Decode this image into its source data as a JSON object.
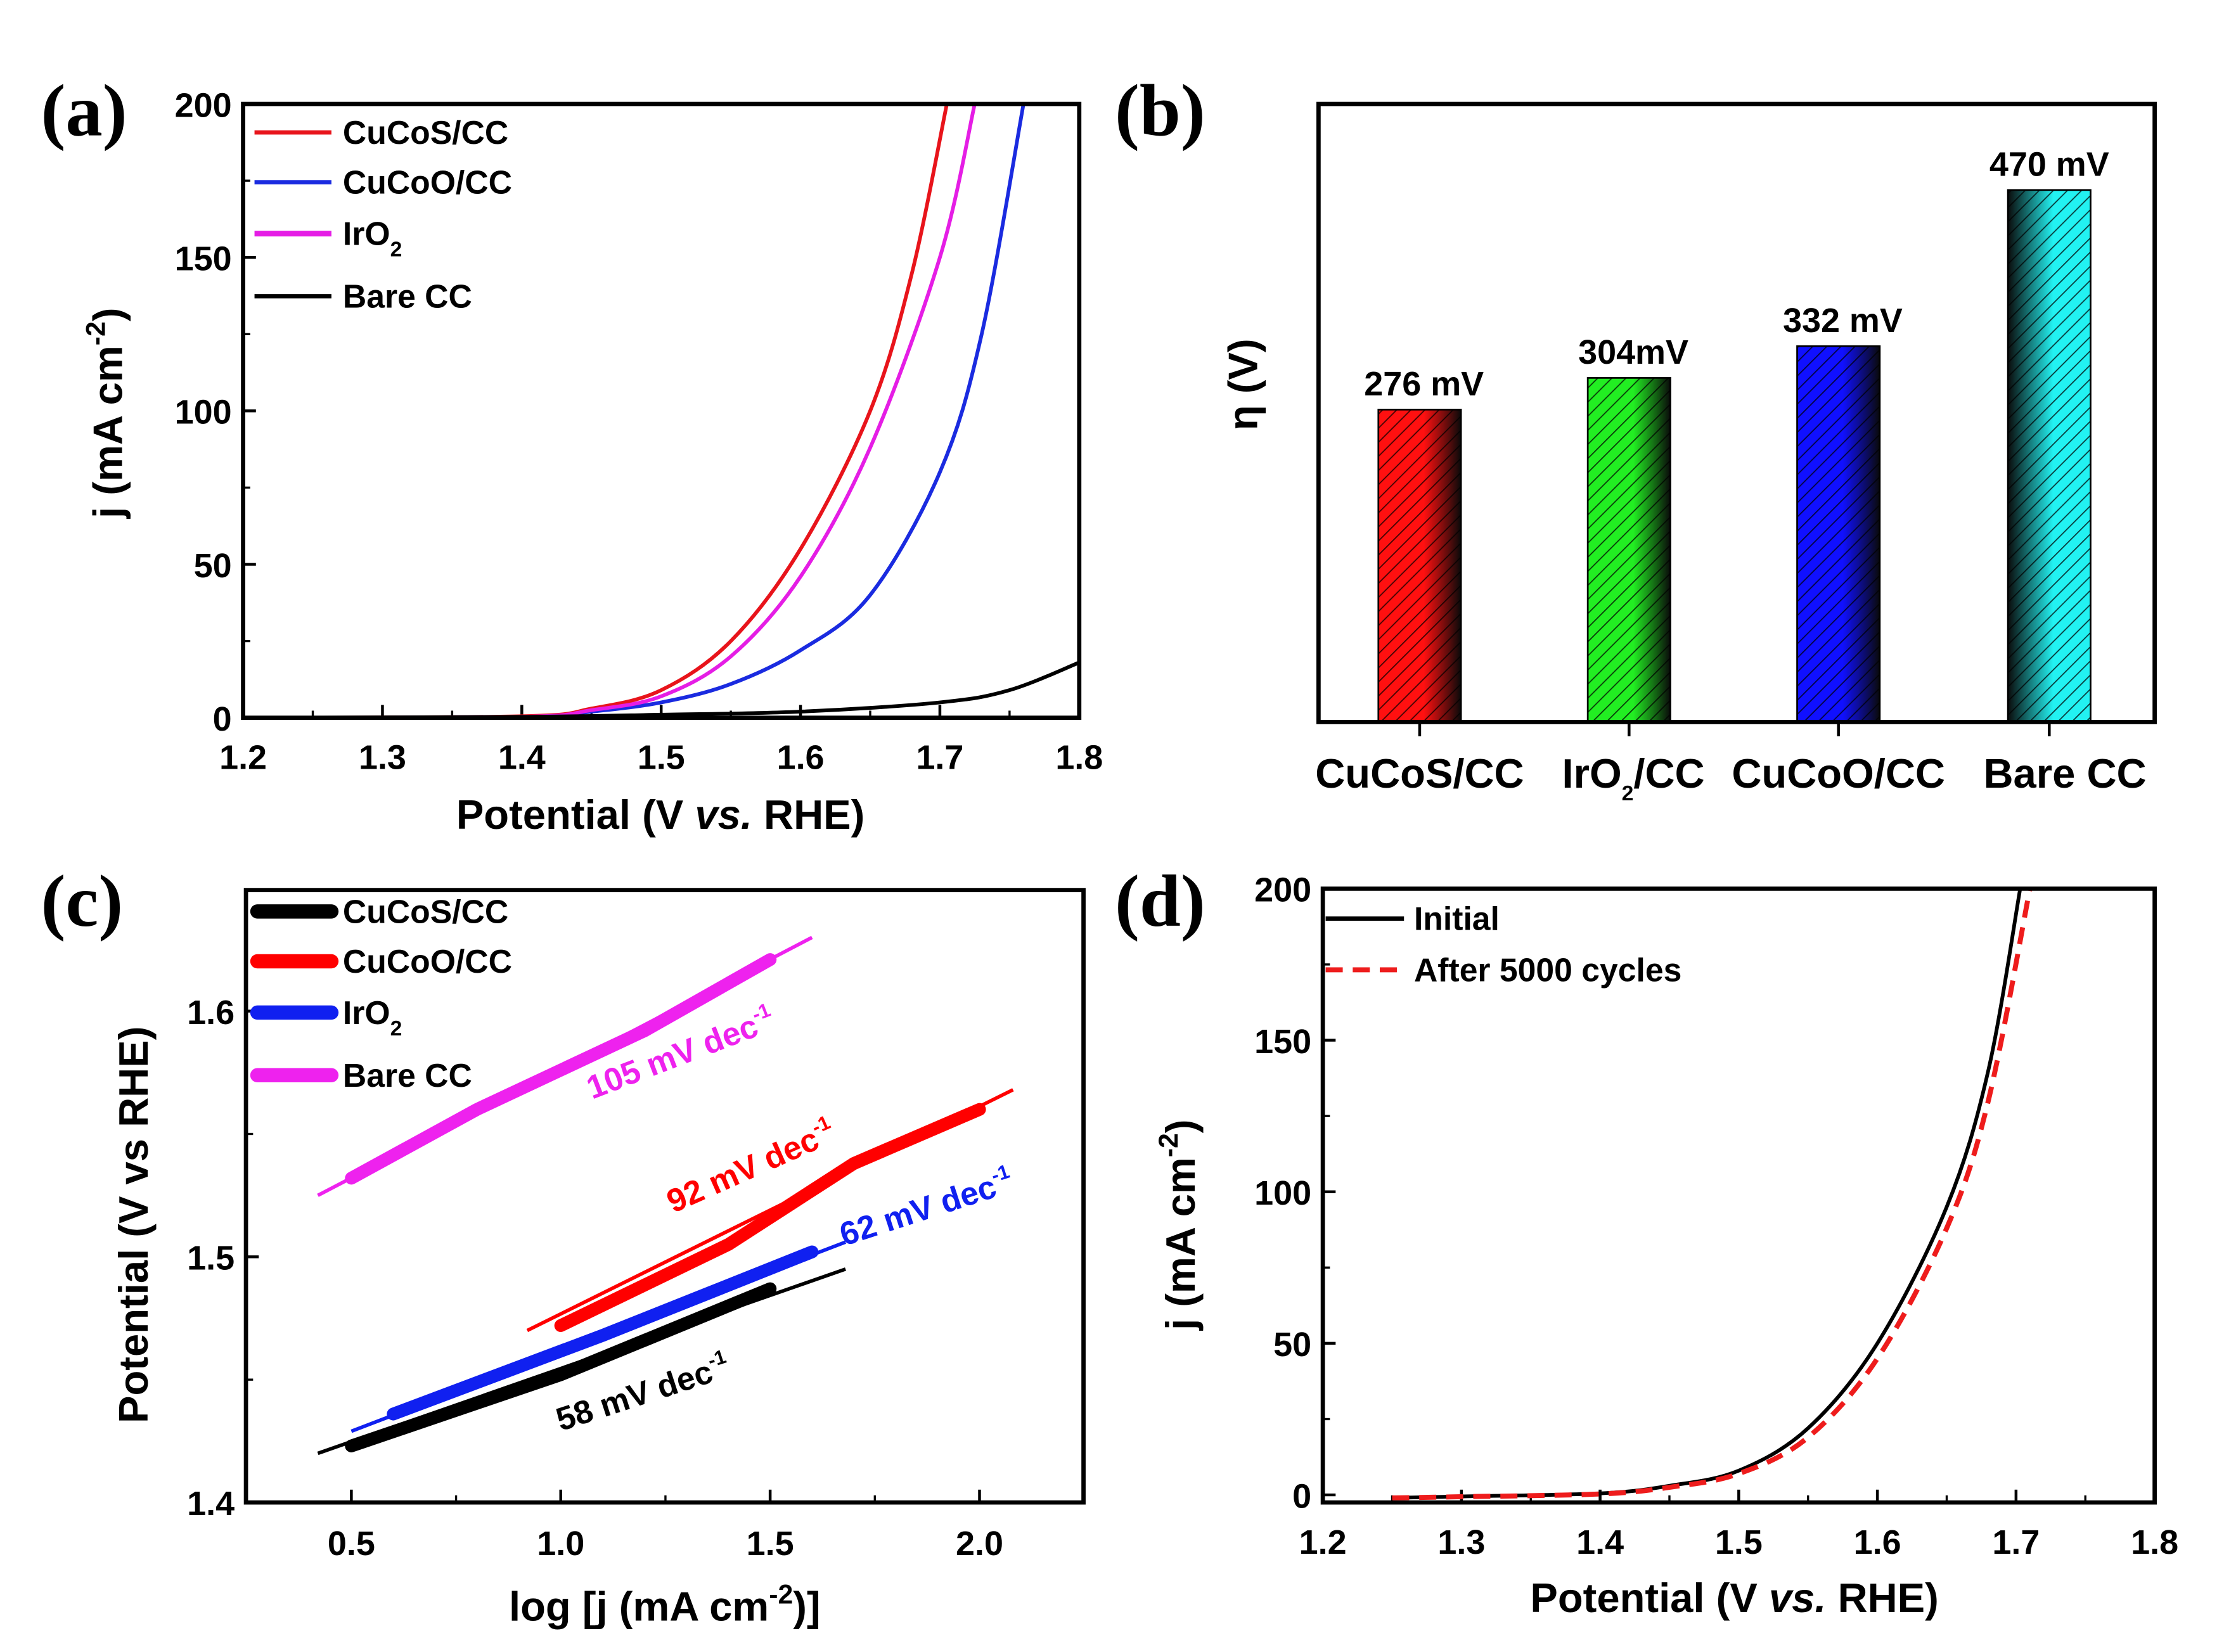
{
  "chart_data": [
    {
      "panel": "(a)",
      "type": "line",
      "xlabel": {
        "pre": "Potential (V ",
        "em": "vs.",
        "post": " RHE)"
      },
      "ylabel": {
        "pre": "j (mA cm",
        "sup": "-2",
        "post": ")"
      },
      "xlim": [
        1.2,
        1.8
      ],
      "ylim": [
        0,
        200
      ],
      "xticks": [
        1.2,
        1.3,
        1.4,
        1.5,
        1.6,
        1.7,
        1.8
      ],
      "yticks": [
        0,
        50,
        100,
        150,
        200
      ],
      "legend_position": "top-left",
      "series": [
        {
          "name": "CuCoS/CC",
          "color": "#e8141b",
          "points": [
            [
              1.2,
              0
            ],
            [
              1.4,
              0.5
            ],
            [
              1.45,
              3
            ],
            [
              1.5,
              9
            ],
            [
              1.55,
              25
            ],
            [
              1.6,
              55
            ],
            [
              1.65,
              100
            ],
            [
              1.68,
              145
            ],
            [
              1.705,
              200
            ]
          ]
        },
        {
          "name": "CuCoO/CC",
          "color": "#1a2be0",
          "points": [
            [
              1.2,
              0
            ],
            [
              1.4,
              0.3
            ],
            [
              1.45,
              2
            ],
            [
              1.5,
              5
            ],
            [
              1.55,
              11
            ],
            [
              1.6,
              22
            ],
            [
              1.65,
              40
            ],
            [
              1.7,
              80
            ],
            [
              1.73,
              125
            ],
            [
              1.76,
              200
            ]
          ]
        },
        {
          "name": "IrO",
          "sub": "2",
          "color": "#e51de5",
          "points": [
            [
              1.2,
              0
            ],
            [
              1.4,
              0.3
            ],
            [
              1.45,
              2.5
            ],
            [
              1.5,
              7
            ],
            [
              1.55,
              20
            ],
            [
              1.6,
              46
            ],
            [
              1.65,
              88
            ],
            [
              1.7,
              150
            ],
            [
              1.725,
              200
            ]
          ]
        },
        {
          "name": "Bare CC",
          "color": "#000000",
          "points": [
            [
              1.2,
              0
            ],
            [
              1.4,
              0.3
            ],
            [
              1.5,
              1
            ],
            [
              1.6,
              2
            ],
            [
              1.7,
              5
            ],
            [
              1.75,
              9
            ],
            [
              1.8,
              18
            ]
          ]
        }
      ]
    },
    {
      "panel": "(b)",
      "type": "bar",
      "ylabel": "η (V)",
      "ylim": [
        0,
        546
      ],
      "categories": [
        {
          "pre": "CuCoS/CC"
        },
        {
          "pre": "IrO",
          "sub": "2",
          "post": "/CC"
        },
        {
          "pre": "CuCoO/CC"
        },
        {
          "pre": "Bare CC"
        }
      ],
      "values": [
        276,
        304,
        332,
        470
      ],
      "value_unit": "mV",
      "data_labels": [
        "276 mV",
        "304mV",
        "332 mV",
        "470 mV"
      ],
      "colors": [
        "#ff1010",
        "#22ee22",
        "#1010ff",
        "#22f2f2"
      ]
    },
    {
      "panel": "(c)",
      "type": "line",
      "xlabel": {
        "pre": "log [j (mA cm",
        "sup": "-2",
        "post": ")]"
      },
      "ylabel": "Potential (V vs RHE)",
      "xlim": [
        0.25,
        2.26
      ],
      "ylim": [
        1.4,
        1.649
      ],
      "xticks": [
        "0.5",
        "1.0",
        "1.5",
        "2.0"
      ],
      "yticks": [
        "1.4",
        "1.5",
        "1.6"
      ],
      "legend_position": "top-left",
      "series": [
        {
          "name": "CuCoS/CC",
          "color": "#000000",
          "data": [
            [
              0.5,
              1.423
            ],
            [
              1.0,
              1.452
            ],
            [
              1.5,
              1.487
            ]
          ],
          "fit": [
            [
              0.42,
              1.42
            ],
            [
              1.68,
              1.495
            ]
          ],
          "slope_label": {
            "pre": "58 mV dec",
            "sup": "-1"
          }
        },
        {
          "name": "CuCoO/CC",
          "color": "#ff0000",
          "data": [
            [
              1.0,
              1.472
            ],
            [
              1.4,
              1.505
            ],
            [
              1.7,
              1.538
            ],
            [
              2.0,
              1.56
            ]
          ],
          "fit": [
            [
              0.92,
              1.47
            ],
            [
              2.08,
              1.568
            ]
          ],
          "slope_label": {
            "pre": "92 mV dec",
            "sup": "-1"
          }
        },
        {
          "name": "IrO",
          "sub": "2",
          "color": "#1020f0",
          "data": [
            [
              0.6,
              1.436
            ],
            [
              1.1,
              1.468
            ],
            [
              1.6,
              1.502
            ]
          ],
          "fit": [
            [
              0.5,
              1.429
            ],
            [
              1.68,
              1.506
            ]
          ],
          "slope_label": {
            "pre": "62 mV dec",
            "sup": "-1"
          }
        },
        {
          "name": "Bare CC",
          "color": "#ee22ee",
          "data": [
            [
              0.5,
              1.532
            ],
            [
              0.8,
              1.56
            ],
            [
              1.2,
              1.592
            ],
            [
              1.5,
              1.621
            ]
          ],
          "fit": [
            [
              0.42,
              1.525
            ],
            [
              1.6,
              1.63
            ]
          ],
          "slope_label": {
            "pre": "105 mV dec",
            "sup": "-1"
          }
        }
      ]
    },
    {
      "panel": "(d)",
      "type": "line",
      "xlabel": {
        "pre": "Potential (V ",
        "em": "vs.",
        "post": " RHE)"
      },
      "ylabel": {
        "pre": "j (mA cm",
        "sup": "-2",
        "post": ")"
      },
      "xlim": [
        1.2,
        1.8
      ],
      "ylim": [
        -2.5,
        200
      ],
      "xticks": [
        1.2,
        1.3,
        1.4,
        1.5,
        1.6,
        1.7,
        1.8
      ],
      "yticks": [
        0,
        50,
        100,
        150,
        200
      ],
      "legend_position": "top-left",
      "series": [
        {
          "name": "Initial",
          "color": "#000000",
          "dash": false,
          "points": [
            [
              1.25,
              -1
            ],
            [
              1.3,
              -0.5
            ],
            [
              1.4,
              0.5
            ],
            [
              1.45,
              3
            ],
            [
              1.5,
              8
            ],
            [
              1.55,
              22
            ],
            [
              1.6,
              50
            ],
            [
              1.65,
              95
            ],
            [
              1.68,
              140
            ],
            [
              1.703,
              200
            ]
          ]
        },
        {
          "name": "After 5000 cycles",
          "color": "#ee1c1c",
          "dash": true,
          "points": [
            [
              1.25,
              -1
            ],
            [
              1.3,
              -0.6
            ],
            [
              1.4,
              0.3
            ],
            [
              1.45,
              2.5
            ],
            [
              1.5,
              7
            ],
            [
              1.55,
              19
            ],
            [
              1.6,
              45
            ],
            [
              1.65,
              88
            ],
            [
              1.68,
              130
            ],
            [
              1.71,
              200
            ]
          ]
        }
      ]
    }
  ]
}
